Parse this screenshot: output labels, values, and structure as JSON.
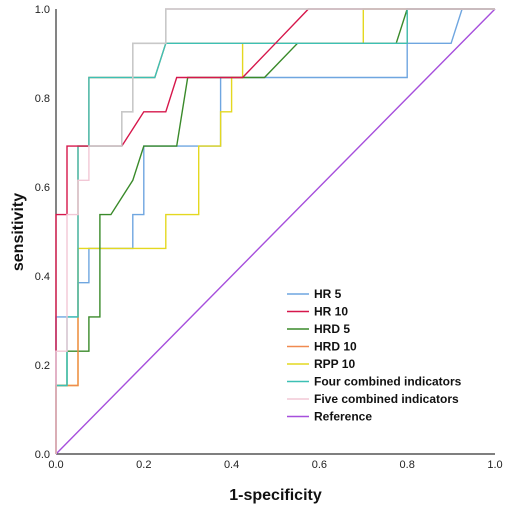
{
  "chart_data": {
    "type": "line",
    "xlabel": "1-specificity",
    "ylabel": "sensitivity",
    "xlim": [
      0,
      1
    ],
    "ylim": [
      0,
      1
    ],
    "x_ticks": [
      "0.0",
      "0.2",
      "0.4",
      "0.6",
      "0.8",
      "1.0"
    ],
    "y_ticks": [
      "0.0",
      "0.2",
      "0.4",
      "0.6",
      "0.8",
      "1.0"
    ],
    "grid": false,
    "legend_position": "bottom-right",
    "series": [
      {
        "name": "HR 5",
        "color": "#6fa6e0",
        "points": [
          [
            0,
            0
          ],
          [
            0,
            0.308
          ],
          [
            0.05,
            0.308
          ],
          [
            0.05,
            0.385
          ],
          [
            0.075,
            0.385
          ],
          [
            0.075,
            0.462
          ],
          [
            0.175,
            0.462
          ],
          [
            0.175,
            0.538
          ],
          [
            0.2,
            0.538
          ],
          [
            0.2,
            0.692
          ],
          [
            0.375,
            0.692
          ],
          [
            0.375,
            0.846
          ],
          [
            0.8,
            0.846
          ],
          [
            0.8,
            0.923
          ],
          [
            0.9,
            0.923
          ],
          [
            0.925,
            1
          ],
          [
            1,
            1
          ]
        ]
      },
      {
        "name": "HR 10",
        "color": "#d6174b",
        "points": [
          [
            0,
            0
          ],
          [
            0,
            0.231
          ],
          [
            0,
            0.538
          ],
          [
            0.025,
            0.538
          ],
          [
            0.025,
            0.692
          ],
          [
            0.15,
            0.692
          ],
          [
            0.2,
            0.769
          ],
          [
            0.25,
            0.769
          ],
          [
            0.275,
            0.846
          ],
          [
            0.425,
            0.846
          ],
          [
            0.5,
            0.923
          ],
          [
            0.575,
            1
          ],
          [
            1,
            1
          ]
        ]
      },
      {
        "name": "HRD 5",
        "color": "#3a8a2a",
        "points": [
          [
            0,
            0
          ],
          [
            0,
            0.154
          ],
          [
            0.025,
            0.154
          ],
          [
            0.025,
            0.231
          ],
          [
            0.075,
            0.231
          ],
          [
            0.075,
            0.308
          ],
          [
            0.1,
            0.308
          ],
          [
            0.1,
            0.538
          ],
          [
            0.125,
            0.538
          ],
          [
            0.175,
            0.615
          ],
          [
            0.2,
            0.692
          ],
          [
            0.275,
            0.692
          ],
          [
            0.3,
            0.846
          ],
          [
            0.425,
            0.846
          ],
          [
            0.475,
            0.846
          ],
          [
            0.55,
            0.923
          ],
          [
            0.775,
            0.923
          ],
          [
            0.8,
            1
          ],
          [
            1,
            1
          ]
        ]
      },
      {
        "name": "HRD 10",
        "color": "#f08a50",
        "points": [
          [
            0,
            0
          ],
          [
            0,
            0.154
          ],
          [
            0.05,
            0.154
          ],
          [
            0.05,
            0.692
          ],
          [
            0.075,
            0.692
          ],
          [
            0.075,
            0.846
          ],
          [
            0.225,
            0.846
          ],
          [
            0.25,
            0.923
          ],
          [
            0.8,
            0.923
          ],
          [
            0.8,
            1
          ],
          [
            1,
            1
          ]
        ]
      },
      {
        "name": "RPP 10",
        "color": "#e4d820",
        "points": [
          [
            0,
            0
          ],
          [
            0,
            0.154
          ],
          [
            0.05,
            0.154
          ],
          [
            0.05,
            0.462
          ],
          [
            0.25,
            0.462
          ],
          [
            0.25,
            0.538
          ],
          [
            0.325,
            0.538
          ],
          [
            0.325,
            0.692
          ],
          [
            0.375,
            0.692
          ],
          [
            0.375,
            0.769
          ],
          [
            0.4,
            0.769
          ],
          [
            0.4,
            0.846
          ],
          [
            0.425,
            0.846
          ],
          [
            0.425,
            0.923
          ],
          [
            0.7,
            0.923
          ],
          [
            0.7,
            1
          ],
          [
            1,
            1
          ]
        ]
      },
      {
        "name": "Four combined indicators",
        "color": "#3cc0b4",
        "points": [
          [
            0,
            0
          ],
          [
            0,
            0.154
          ],
          [
            0.025,
            0.154
          ],
          [
            0.025,
            0.308
          ],
          [
            0.05,
            0.308
          ],
          [
            0.05,
            0.692
          ],
          [
            0.075,
            0.692
          ],
          [
            0.075,
            0.846
          ],
          [
            0.225,
            0.846
          ],
          [
            0.25,
            0.923
          ],
          [
            0.8,
            0.923
          ],
          [
            0.8,
            1
          ],
          [
            1,
            1
          ]
        ]
      },
      {
        "name": "Five combined indicators",
        "color": "#f2c8d6",
        "points": [
          [
            0,
            0
          ],
          [
            0,
            0.231
          ],
          [
            0.025,
            0.231
          ],
          [
            0.025,
            0.538
          ],
          [
            0.05,
            0.538
          ],
          [
            0.05,
            0.615
          ],
          [
            0.075,
            0.615
          ],
          [
            0.075,
            0.692
          ],
          [
            0.15,
            0.692
          ],
          [
            0.15,
            0.769
          ],
          [
            0.175,
            0.769
          ],
          [
            0.175,
            0.923
          ],
          [
            0.25,
            0.923
          ],
          [
            0.25,
            1
          ],
          [
            1,
            1
          ]
        ]
      },
      {
        "name": "Reference",
        "color": "#a64fdc",
        "points": [
          [
            0,
            0
          ],
          [
            1,
            1
          ]
        ]
      }
    ],
    "overlays": [
      {
        "color": "#c8c8c8",
        "points": [
          [
            0.075,
            0.692
          ],
          [
            0.15,
            0.692
          ],
          [
            0.15,
            0.769
          ],
          [
            0.175,
            0.769
          ],
          [
            0.175,
            0.923
          ],
          [
            0.25,
            0.923
          ],
          [
            0.25,
            1
          ],
          [
            1,
            1
          ]
        ]
      }
    ]
  }
}
